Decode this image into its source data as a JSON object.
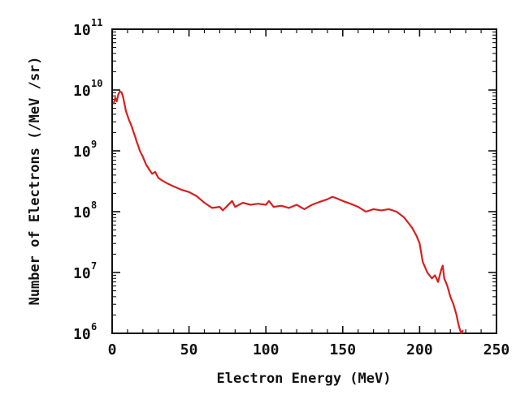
{
  "chart_data": {
    "type": "line",
    "title": "",
    "xlabel": "Electron Energy (MeV)",
    "ylabel": "Number of Electrons (/MeV /sr)",
    "xlim": [
      0,
      250
    ],
    "ylim_log10": [
      6,
      11
    ],
    "y_scale": "log",
    "grid": false,
    "line_color": "#d62020",
    "x_ticks": [
      {
        "value": 0,
        "label": "0"
      },
      {
        "value": 50,
        "label": "50"
      },
      {
        "value": 100,
        "label": "100"
      },
      {
        "value": 150,
        "label": "150"
      },
      {
        "value": 200,
        "label": "200"
      },
      {
        "value": 250,
        "label": "250"
      }
    ],
    "y_ticks": [
      {
        "value": "1e6",
        "base": "10",
        "exp": "6"
      },
      {
        "value": "1e7",
        "base": "10",
        "exp": "7"
      },
      {
        "value": "1e8",
        "base": "10",
        "exp": "8"
      },
      {
        "value": "1e9",
        "base": "10",
        "exp": "9"
      },
      {
        "value": "1e10",
        "base": "10",
        "exp": "10"
      },
      {
        "value": "1e11",
        "base": "10",
        "exp": "11"
      }
    ],
    "series": [
      {
        "x": [
          1,
          2,
          3,
          4,
          5,
          6,
          7,
          8,
          9,
          10,
          11,
          12,
          13,
          14,
          15,
          16,
          17,
          18,
          20,
          22,
          24,
          26,
          28,
          30,
          33,
          36,
          40,
          45,
          50,
          55,
          60,
          65,
          70,
          72,
          75,
          78,
          80,
          85,
          90,
          95,
          100,
          102,
          105,
          110,
          115,
          120,
          125,
          130,
          135,
          140,
          143,
          145,
          150,
          155,
          160,
          165,
          170,
          175,
          180,
          185,
          190,
          195,
          198,
          200,
          202,
          205,
          208,
          210,
          212,
          214,
          215,
          216,
          218,
          220,
          222,
          224,
          225,
          226,
          227,
          228
        ],
        "y": [
          6000000000.0,
          7500000000.0,
          6500000000.0,
          8500000000.0,
          9500000000.0,
          9200000000.0,
          8000000000.0,
          6000000000.0,
          4500000000.0,
          3800000000.0,
          3200000000.0,
          2800000000.0,
          2400000000.0,
          2000000000.0,
          1700000000.0,
          1400000000.0,
          1200000000.0,
          1000000000.0,
          800000000.0,
          600000000.0,
          500000000.0,
          420000000.0,
          450000000.0,
          360000000.0,
          320000000.0,
          290000000.0,
          260000000.0,
          230000000.0,
          210000000.0,
          180000000.0,
          140000000.0,
          115000000.0,
          120000000.0,
          105000000.0,
          125000000.0,
          150000000.0,
          120000000.0,
          140000000.0,
          130000000.0,
          135000000.0,
          130000000.0,
          150000000.0,
          120000000.0,
          125000000.0,
          115000000.0,
          130000000.0,
          110000000.0,
          130000000.0,
          145000000.0,
          160000000.0,
          175000000.0,
          170000000.0,
          150000000.0,
          135000000.0,
          120000000.0,
          100000000.0,
          110000000.0,
          105000000.0,
          110000000.0,
          100000000.0,
          80000000.0,
          55000000.0,
          40000000.0,
          30000000.0,
          15000000.0,
          10000000.0,
          8000000.0,
          9000000.0,
          7000000.0,
          11000000.0,
          13000000.0,
          8000000.0,
          6000000.0,
          4000000.0,
          3000000.0,
          2000000.0,
          1500000.0,
          1200000.0,
          1000000.0,
          1100000.0
        ]
      }
    ]
  }
}
